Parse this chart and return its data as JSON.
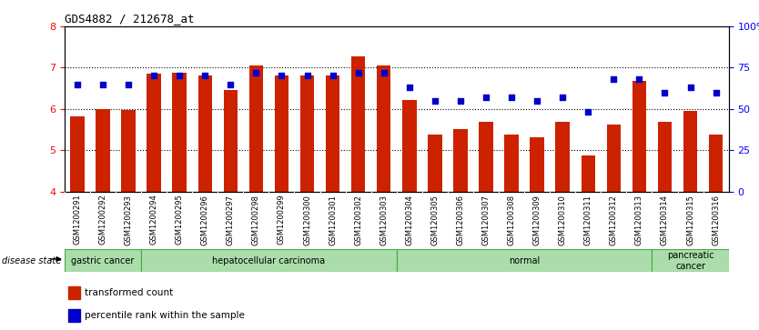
{
  "title": "GDS4882 / 212678_at",
  "categories": [
    "GSM1200291",
    "GSM1200292",
    "GSM1200293",
    "GSM1200294",
    "GSM1200295",
    "GSM1200296",
    "GSM1200297",
    "GSM1200298",
    "GSM1200299",
    "GSM1200300",
    "GSM1200301",
    "GSM1200302",
    "GSM1200303",
    "GSM1200304",
    "GSM1200305",
    "GSM1200306",
    "GSM1200307",
    "GSM1200308",
    "GSM1200309",
    "GSM1200310",
    "GSM1200311",
    "GSM1200312",
    "GSM1200313",
    "GSM1200314",
    "GSM1200315",
    "GSM1200316"
  ],
  "bar_values": [
    5.82,
    6.0,
    5.98,
    6.85,
    6.88,
    6.82,
    6.45,
    7.05,
    6.82,
    6.82,
    6.82,
    7.28,
    7.05,
    6.22,
    5.38,
    5.52,
    5.68,
    5.38,
    5.32,
    5.68,
    4.88,
    5.62,
    6.68,
    5.68,
    5.95,
    5.38
  ],
  "dot_values": [
    65,
    65,
    65,
    70,
    70,
    70,
    65,
    72,
    70,
    70,
    70,
    72,
    72,
    63,
    55,
    55,
    57,
    57,
    55,
    57,
    48,
    68,
    68,
    60,
    63,
    60
  ],
  "ylim": [
    4,
    8
  ],
  "y2lim": [
    0,
    100
  ],
  "yticks": [
    4,
    5,
    6,
    7,
    8
  ],
  "y2ticks": [
    0,
    25,
    50,
    75,
    100
  ],
  "bar_color": "#cc2200",
  "dot_color": "#0000cc",
  "disease_groups": [
    {
      "label": "gastric cancer",
      "start": 0,
      "end": 3
    },
    {
      "label": "hepatocellular carcinoma",
      "start": 3,
      "end": 13
    },
    {
      "label": "normal",
      "start": 13,
      "end": 23
    },
    {
      "label": "pancreatic\ncancer",
      "start": 23,
      "end": 26
    }
  ],
  "legend_items": [
    {
      "label": "transformed count",
      "color": "#cc2200"
    },
    {
      "label": "percentile rank within the sample",
      "color": "#0000cc"
    }
  ]
}
